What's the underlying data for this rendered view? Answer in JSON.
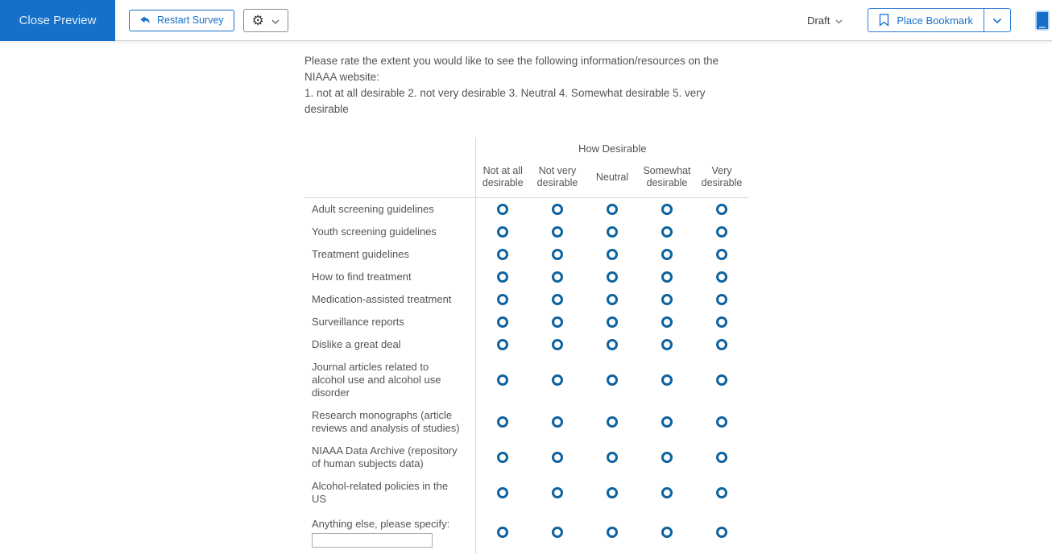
{
  "colors": {
    "accent_blue": "#1470c8",
    "radio_blue": "#0e62a0",
    "divider_gray": "#d9d9d9",
    "text_gray": "#545454"
  },
  "topbar": {
    "close_preview_label": "Close Preview",
    "restart_label": "Restart Survey",
    "draft_label": "Draft",
    "place_bookmark_label": "Place Bookmark",
    "icons": {
      "restart": "undo-arrow-icon",
      "settings": "gear-icon",
      "settings_caret": "chevron-down-icon",
      "draft_caret": "chevron-down-icon",
      "bookmark": "bookmark-icon",
      "bookmark_caret": "chevron-down-icon",
      "device": "mobile-phone-icon"
    }
  },
  "question": {
    "text_line1": "Please rate the extent you would like to see the following information/resources on the NIAAA website:",
    "text_line2": "1. not at all desirable 2. not very desirable 3. Neutral 4. Somewhat desirable 5. very desirable"
  },
  "matrix": {
    "group_header": "How Desirable",
    "columns": [
      "Not at all desirable",
      "Not very desirable",
      "Neutral",
      "Somewhat desirable",
      "Very desirable"
    ],
    "rows": [
      {
        "label": "Adult screening guidelines"
      },
      {
        "label": "Youth screening guidelines"
      },
      {
        "label": "Treatment guidelines"
      },
      {
        "label": "How to find treatment"
      },
      {
        "label": "Medication-assisted treatment"
      },
      {
        "label": "Surveillance reports"
      },
      {
        "label": "Dislike a great deal"
      },
      {
        "label": "Journal articles related to alcohol use and alcohol use disorder"
      },
      {
        "label": "Research monographs (article reviews and analysis of studies)"
      },
      {
        "label": "NIAAA Data Archive (repository of human subjects data)"
      },
      {
        "label": "Alcohol-related policies in the US"
      },
      {
        "label": "Anything else, please specify:",
        "has_text_input": true,
        "input_value": "",
        "input_placeholder": ""
      }
    ],
    "radio_state": "unselected"
  }
}
